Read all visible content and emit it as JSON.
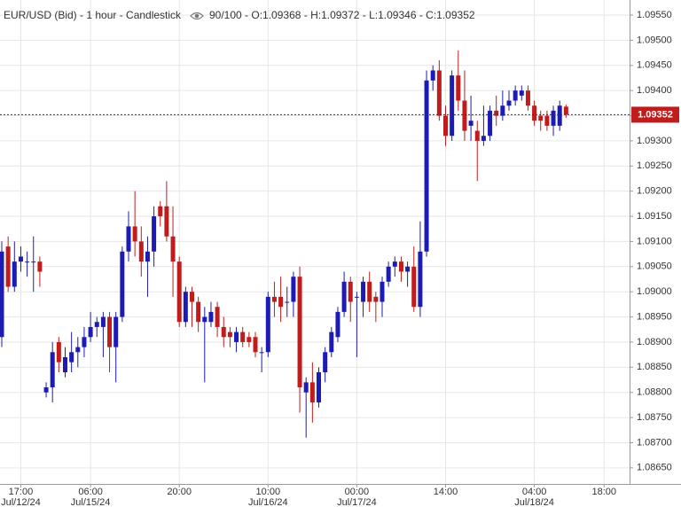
{
  "chart_data": {
    "type": "candlestick",
    "title": "EUR/USD (Bid) - 1 hour - Candlestick",
    "subtitle": "90/100 - O:1.09368 - H:1.09372 - L:1.09346 - C:1.09352",
    "categories": [
      null,
      null,
      null,
      "17:00",
      null,
      null,
      null,
      null,
      null,
      null,
      null,
      null,
      null,
      null,
      "06:00",
      null,
      null,
      null,
      null,
      null,
      null,
      null,
      null,
      null,
      null,
      null,
      null,
      null,
      "20:00",
      null,
      null,
      null,
      null,
      null,
      null,
      null,
      null,
      null,
      null,
      null,
      null,
      null,
      "10:00",
      null,
      null,
      null,
      null,
      null,
      null,
      null,
      null,
      null,
      null,
      null,
      null,
      null,
      "00:00",
      null,
      null,
      null,
      null,
      null,
      null,
      null,
      null,
      null,
      null,
      null,
      null,
      null,
      "14:00",
      null,
      null,
      null,
      null,
      null,
      null,
      null,
      null,
      null,
      null,
      null,
      null,
      null,
      "04:00",
      null,
      null,
      null,
      null,
      null,
      null,
      null,
      null,
      null,
      null,
      "18:00"
    ],
    "category_dates": [
      null,
      null,
      null,
      "Jul/12/24",
      null,
      null,
      null,
      null,
      null,
      null,
      null,
      null,
      null,
      null,
      "Jul/15/24",
      null,
      null,
      null,
      null,
      null,
      null,
      null,
      null,
      null,
      null,
      null,
      null,
      null,
      null,
      null,
      null,
      null,
      null,
      null,
      null,
      null,
      null,
      null,
      null,
      null,
      null,
      null,
      "Jul/16/24",
      null,
      null,
      null,
      null,
      null,
      null,
      null,
      null,
      null,
      null,
      null,
      null,
      null,
      "Jul/17/24",
      null,
      null,
      null,
      null,
      null,
      null,
      null,
      null,
      null,
      null,
      null,
      null,
      null,
      null,
      null,
      null,
      null,
      null,
      null,
      null,
      null,
      null,
      null,
      null,
      null,
      null,
      null,
      "Jul/18/24",
      null,
      null,
      null,
      null,
      null,
      null,
      null,
      null,
      null,
      null,
      null
    ],
    "open": [
      1.0891,
      1.0909,
      1.0901,
      1.0906,
      1.0906,
      1.0906,
      1.0906,
      1.088,
      1.0881,
      1.089,
      1.0884,
      1.0886,
      1.0888,
      1.0889,
      1.0891,
      1.0893,
      1.0893,
      1.0895,
      1.0889,
      1.0895,
      1.0908,
      1.0913,
      1.091,
      1.0906,
      1.0908,
      1.0917,
      1.0917,
      1.0911,
      1.0906,
      1.0894,
      1.09,
      1.0898,
      1.0894,
      1.0894,
      1.0897,
      1.0893,
      1.0892,
      1.089,
      1.0892,
      1.0891,
      1.0891,
      1.0888,
      1.0888,
      1.0899,
      1.0899,
      1.0898,
      1.0898,
      1.0903,
      1.088,
      1.0882,
      1.0878,
      1.0884,
      1.0888,
      1.0891,
      1.0896,
      1.0902,
      1.0899,
      1.0898,
      1.0902,
      1.0899,
      1.0898,
      1.0902,
      1.0905,
      1.0906,
      1.0904,
      1.0905,
      1.0897,
      1.0908,
      1.0942,
      1.0944,
      1.0935,
      1.0931,
      1.0943,
      1.0938,
      1.0933,
      1.0932,
      1.093,
      1.0931,
      1.0936,
      1.0935,
      1.0937,
      1.0938,
      1.0939,
      1.094,
      1.0937,
      1.0935,
      1.0935,
      1.0933,
      1.0933,
      1.09368,
      null,
      null,
      null,
      null,
      null,
      null
    ],
    "high": [
      1.091,
      1.0911,
      1.091,
      1.0909,
      1.0908,
      1.0911,
      1.0907,
      1.0882,
      1.089,
      1.0891,
      1.0889,
      1.0892,
      1.0891,
      1.0893,
      1.0896,
      1.0895,
      1.0896,
      1.0896,
      1.0896,
      1.0909,
      1.0916,
      1.092,
      1.0913,
      1.0911,
      1.0917,
      1.0918,
      1.0922,
      1.0917,
      1.0907,
      1.0901,
      1.0901,
      1.0899,
      1.0897,
      1.0898,
      1.0898,
      1.0895,
      1.0893,
      1.0893,
      1.0893,
      1.0892,
      1.0892,
      1.0889,
      1.09,
      1.0902,
      1.0903,
      1.0901,
      1.0904,
      1.0905,
      1.0883,
      1.0886,
      1.0885,
      1.0889,
      1.0893,
      1.0897,
      1.0904,
      1.0903,
      1.09,
      1.0903,
      1.0904,
      1.09,
      1.0903,
      1.0906,
      1.0907,
      1.0907,
      1.0906,
      1.0909,
      1.0914,
      1.0944,
      1.0945,
      1.0946,
      1.0937,
      1.0944,
      1.0948,
      1.0944,
      1.0939,
      1.0934,
      1.0937,
      1.0937,
      1.0939,
      1.094,
      1.094,
      1.0941,
      1.0941,
      1.0941,
      1.0938,
      1.0936,
      1.0936,
      1.0937,
      1.0938,
      1.09372,
      null,
      null,
      null,
      null,
      null,
      null
    ],
    "low": [
      1.0889,
      1.09,
      1.09,
      1.0904,
      1.0903,
      1.09,
      1.0901,
      1.0879,
      1.0878,
      1.0884,
      1.0883,
      1.0884,
      1.0885,
      1.0887,
      1.089,
      1.0891,
      1.0887,
      1.0884,
      1.0882,
      1.0894,
      1.0906,
      1.0907,
      1.0903,
      1.0899,
      1.0905,
      1.0913,
      1.091,
      1.0899,
      1.0893,
      1.0893,
      1.0893,
      1.0892,
      1.0882,
      1.0893,
      1.0891,
      1.0889,
      1.0889,
      1.0888,
      1.0889,
      1.0889,
      1.0887,
      1.0884,
      1.0887,
      1.0895,
      1.0894,
      1.0895,
      1.0895,
      1.0876,
      1.0871,
      1.0874,
      1.0877,
      1.0882,
      1.0887,
      1.089,
      1.0895,
      1.0894,
      1.0887,
      1.0895,
      1.0896,
      1.0894,
      1.0895,
      1.0901,
      1.0903,
      1.0902,
      1.0901,
      1.0896,
      1.0895,
      1.0907,
      1.094,
      1.0934,
      1.0929,
      1.093,
      1.0936,
      1.093,
      1.093,
      1.0922,
      1.0929,
      1.093,
      1.0933,
      1.0934,
      1.0936,
      1.0937,
      1.0938,
      1.0936,
      1.0933,
      1.0932,
      1.0932,
      1.0931,
      1.0932,
      1.09346,
      null,
      null,
      null,
      null,
      null,
      null
    ],
    "close": [
      1.0908,
      1.0901,
      1.0906,
      1.0907,
      1.0906,
      1.0906,
      1.0904,
      1.0881,
      1.0888,
      1.0886,
      1.0887,
      1.0888,
      1.0889,
      1.0891,
      1.0893,
      1.0894,
      1.0895,
      1.0889,
      1.0895,
      1.0908,
      1.0913,
      1.091,
      1.0906,
      1.0908,
      1.0915,
      1.0915,
      1.0911,
      1.0906,
      1.0894,
      1.09,
      1.0898,
      1.0894,
      1.0895,
      1.0896,
      1.0893,
      1.0891,
      1.0891,
      1.0892,
      1.089,
      1.089,
      1.0888,
      1.0888,
      1.0899,
      1.0898,
      1.0897,
      1.0898,
      1.0903,
      1.0881,
      1.0882,
      1.0878,
      1.0884,
      1.0888,
      1.0892,
      1.0896,
      1.0902,
      1.0898,
      1.0899,
      1.0902,
      1.0898,
      1.0898,
      1.0902,
      1.0905,
      1.0906,
      1.0904,
      1.0905,
      1.0897,
      1.0908,
      1.0942,
      1.0944,
      1.0935,
      1.0931,
      1.0943,
      1.0938,
      1.0932,
      1.0934,
      1.093,
      1.0931,
      1.0936,
      1.0935,
      1.0937,
      1.0938,
      1.094,
      1.094,
      1.0937,
      1.0934,
      1.0934,
      1.0933,
      1.0936,
      1.0937,
      1.09352,
      null,
      null,
      null,
      null,
      null,
      null
    ],
    "up_color": "#1c1cb4",
    "down_color": "#c01c1c",
    "last_price": {
      "value": 1.09352,
      "label": "1.09352"
    },
    "last_price_color": "#c01c1c",
    "ylim": [
      1.08618,
      1.0958
    ],
    "yticks": [
      {
        "value": 1.0865,
        "label": "1.08650"
      },
      {
        "value": 1.087,
        "label": "1.08700"
      },
      {
        "value": 1.0875,
        "label": "1.08750"
      },
      {
        "value": 1.088,
        "label": "1.08800"
      },
      {
        "value": 1.0885,
        "label": "1.08850"
      },
      {
        "value": 1.089,
        "label": "1.08900"
      },
      {
        "value": 1.0895,
        "label": "1.08950"
      },
      {
        "value": 1.09,
        "label": "1.09000"
      },
      {
        "value": 1.0905,
        "label": "1.09050"
      },
      {
        "value": 1.091,
        "label": "1.09100"
      },
      {
        "value": 1.0915,
        "label": "1.09150"
      },
      {
        "value": 1.092,
        "label": "1.09200"
      },
      {
        "value": 1.0925,
        "label": "1.09250"
      },
      {
        "value": 1.093,
        "label": "1.09300"
      },
      {
        "value": 1.0935,
        "label": "1.09350"
      },
      {
        "value": 1.094,
        "label": "1.09400"
      },
      {
        "value": 1.0945,
        "label": "1.09450"
      },
      {
        "value": 1.095,
        "label": "1.09500"
      },
      {
        "value": 1.0955,
        "label": "1.09550"
      }
    ],
    "grid": true
  }
}
